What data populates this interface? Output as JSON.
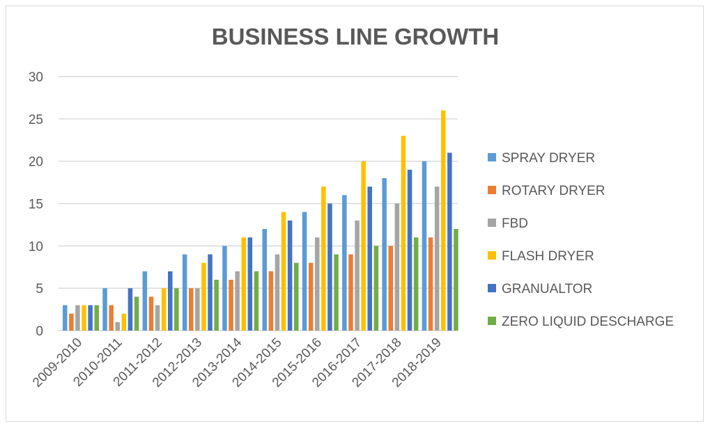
{
  "chart_data": {
    "type": "bar",
    "title": "BUSINESS LINE GROWTH",
    "xlabel": "",
    "ylabel": "",
    "ylim": [
      0,
      30
    ],
    "yticks": [
      0,
      5,
      10,
      15,
      20,
      25,
      30
    ],
    "grid": true,
    "legend_position": "right",
    "categories": [
      "2009-2010",
      "2010-2011",
      "2011-2012",
      "2012-2013",
      "2013-2014",
      "2014-2015",
      "2015-2016",
      "2016-2017",
      "2017-2018",
      "2018-2019"
    ],
    "series": [
      {
        "name": "SPRAY DRYER",
        "color": "#5B9BD5",
        "values": [
          3,
          5,
          7,
          9,
          10,
          12,
          14,
          16,
          18,
          20
        ]
      },
      {
        "name": "ROTARY DRYER",
        "color": "#ED7D31",
        "values": [
          2,
          3,
          4,
          5,
          6,
          7,
          8,
          9,
          10,
          11
        ]
      },
      {
        "name": "FBD",
        "color": "#A5A5A5",
        "values": [
          3,
          1,
          3,
          5,
          7,
          9,
          11,
          13,
          15,
          17
        ]
      },
      {
        "name": "FLASH DRYER",
        "color": "#FFC000",
        "values": [
          3,
          2,
          5,
          8,
          11,
          14,
          17,
          20,
          23,
          26
        ]
      },
      {
        "name": "GRANUALTOR",
        "color": "#4472C4",
        "values": [
          3,
          5,
          7,
          9,
          11,
          13,
          15,
          17,
          19,
          21
        ]
      },
      {
        "name": "ZERO LIQUID DESCHARGE",
        "color": "#70AD47",
        "values": [
          3,
          4,
          5,
          6,
          7,
          8,
          9,
          10,
          11,
          12
        ]
      }
    ]
  }
}
